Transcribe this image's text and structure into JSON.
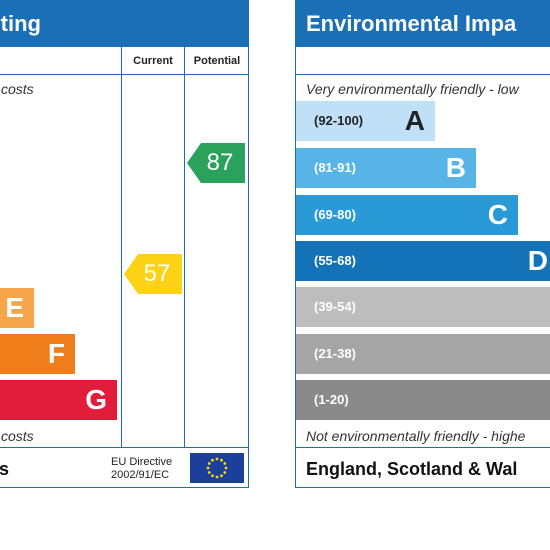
{
  "left_panel": {
    "title_fragment": "ting",
    "col_current": "Current",
    "col_potential": "Potential",
    "top_note_fragment": "costs",
    "bottom_note_fragment": "costs",
    "footer_fragment": "s",
    "bands": [
      {
        "letter": "E",
        "color": "#f5a54a"
      },
      {
        "letter": "F",
        "color": "#ef7d1a"
      },
      {
        "letter": "G",
        "color": "#e21d3b"
      }
    ],
    "current_rating": "57",
    "current_color": "#fcd116",
    "potential_rating": "87",
    "potential_color": "#2aa25c",
    "eu_line1": "EU Directive",
    "eu_line2": "2002/91/EC"
  },
  "right_panel": {
    "title": "Environmental Impa",
    "top_note": "Very environmentally friendly - low",
    "bottom_note": "Not environmentally friendly - highe",
    "footer": "England, Scotland & Wal",
    "bands": [
      {
        "range": "(92-100)",
        "letter": "A",
        "color": "#bfe0f7"
      },
      {
        "range": "(81-91)",
        "letter": "B",
        "color": "#58b4e6"
      },
      {
        "range": "(69-80)",
        "letter": "C",
        "color": "#2a9ad6"
      },
      {
        "range": "(55-68)",
        "letter": "D",
        "color": "#1472b9"
      },
      {
        "range": "(39-54)",
        "letter": "",
        "color": "#bdbdbd"
      },
      {
        "range": "(21-38)",
        "letter": "",
        "color": "#a5a5a5"
      },
      {
        "range": "(1-20)",
        "letter": "",
        "color": "#8a8a8a"
      }
    ]
  }
}
